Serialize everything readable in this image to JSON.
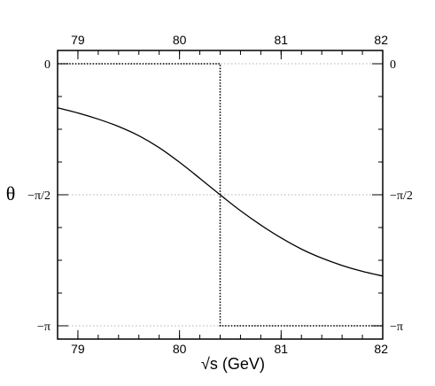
{
  "chart_data": {
    "type": "line",
    "title": "",
    "xlabel": "√s (GeV)",
    "ylabel": "θ",
    "xlim": [
      78.8,
      82.0
    ],
    "ylim": [
      -3.14159,
      0
    ],
    "grid": false,
    "x_ticks": [
      {
        "value": 79,
        "label": "79"
      },
      {
        "value": 80,
        "label": "80"
      },
      {
        "value": 81,
        "label": "81"
      },
      {
        "value": 82,
        "label": "82"
      }
    ],
    "x_minor_step": 0.2,
    "y_ticks": [
      {
        "value": 0,
        "label": "0"
      },
      {
        "value": -1.5708,
        "label": "−π/2"
      },
      {
        "value": -3.14159,
        "label": "−π"
      }
    ],
    "y_minor_step": 0.3927,
    "reference_lines": [
      {
        "axis": "y",
        "value": 0
      },
      {
        "axis": "y",
        "value": -1.5708
      },
      {
        "axis": "y",
        "value": -3.14159
      }
    ],
    "series": [
      {
        "style": "solid",
        "color": "#000000",
        "x": [
          78.8,
          79.0,
          79.2,
          79.4,
          79.6,
          79.8,
          80.0,
          80.2,
          80.4,
          80.6,
          80.8,
          81.0,
          81.2,
          81.4,
          81.6,
          81.8,
          82.0
        ],
        "y": [
          -0.528,
          -0.59,
          -0.664,
          -0.752,
          -0.863,
          -1.006,
          -1.181,
          -1.374,
          -1.571,
          -1.762,
          -1.934,
          -2.088,
          -2.222,
          -2.33,
          -2.418,
          -2.489,
          -2.545
        ]
      },
      {
        "style": "dotted",
        "color": "#000000",
        "x": [
          78.8,
          80.4,
          80.4,
          82.0
        ],
        "y": [
          0,
          0,
          -3.14159,
          -3.14159
        ]
      }
    ]
  }
}
